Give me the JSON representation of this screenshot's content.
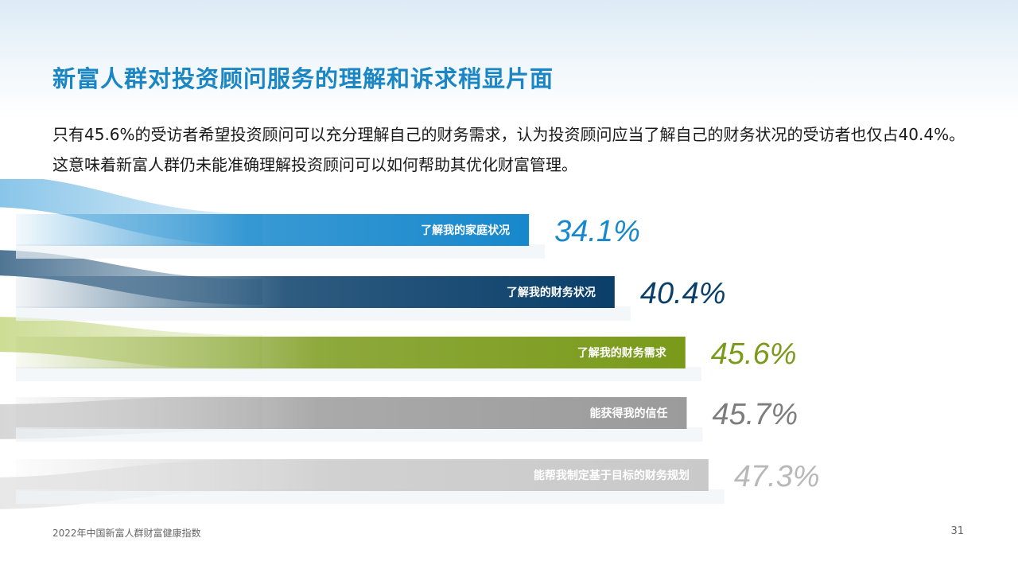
{
  "title": "新富人群对投资顾问服务的理解和诉求稍显片面",
  "description": "只有45.6%的受访者希望投资顾问可以充分理解自己的财务需求，认为投资顾问应当了解自己的财务状况的受访者也仅占40.4%。这意味着新富人群仍未能准确理解投资顾问可以如何帮助其优化财富管理。",
  "footer": {
    "report_name": "2022年中国新富人群财富健康指数",
    "page_number": "31"
  },
  "chart_data": {
    "type": "bar",
    "orientation": "horizontal",
    "unit": "%",
    "categories": [
      "了解我的家庭状况",
      "了解我的财务状况",
      "了解我的财务需求",
      "能获得我的信任",
      "能帮我制定基于目标的财务规划"
    ],
    "values": [
      34.1,
      40.4,
      45.6,
      45.7,
      47.3
    ],
    "value_labels": [
      "34.1%",
      "40.4%",
      "45.6%",
      "45.7%",
      "47.3%"
    ],
    "colors": [
      "#1788cc",
      "#0a3f6a",
      "#7a9a1a",
      "#9b9b9b",
      "#c9c9c9"
    ],
    "label_colors": [
      "#1788cc",
      "#0a3f6a",
      "#7a9a1a",
      "#7d7d7d",
      "#b8b8b8"
    ]
  }
}
